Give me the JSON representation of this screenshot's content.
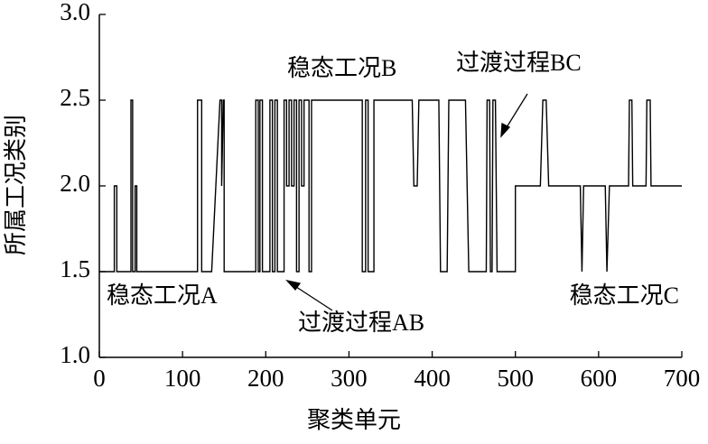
{
  "chart_data": {
    "type": "line",
    "xlabel": "聚类单元",
    "ylabel": "所属工况类别",
    "color": "#000000",
    "xlim": [
      0,
      700
    ],
    "ylim": [
      1,
      3
    ],
    "xticks": [
      0,
      100,
      200,
      300,
      400,
      500,
      600,
      700
    ],
    "yticks": [
      {
        "value": 1,
        "label": "1.0"
      },
      1.5,
      {
        "value": 2,
        "label": "2.0"
      },
      2.5,
      {
        "value": 3,
        "label": "3.0"
      }
    ],
    "annotations": [
      "稳态工况A",
      "过渡过程AB",
      "稳态工况B",
      "过渡过程BC",
      "稳态工况C"
    ],
    "x": [
      0,
      18,
      18,
      21,
      21,
      38,
      38,
      40,
      40,
      43,
      43,
      45,
      45,
      118,
      118,
      123,
      123,
      135,
      145,
      147,
      147,
      149,
      150,
      150,
      188,
      188,
      191,
      191,
      193,
      193,
      196,
      196,
      205,
      205,
      208,
      208,
      211,
      211,
      214,
      214,
      222,
      222,
      225,
      225,
      228,
      228,
      231,
      231,
      234,
      234,
      237,
      237,
      240,
      240,
      243,
      243,
      246,
      246,
      252,
      252,
      255,
      255,
      316,
      316,
      320,
      320,
      323,
      323,
      330,
      330,
      376,
      378,
      382,
      384,
      408,
      410,
      418,
      420,
      440,
      444,
      465,
      466,
      469,
      470,
      472,
      473,
      476,
      478,
      500,
      500,
      530,
      533,
      537,
      540,
      578,
      580,
      582,
      588,
      590,
      608,
      610,
      613,
      636,
      637,
      640,
      641,
      657,
      658,
      662,
      663,
      700
    ],
    "values": [
      1.5,
      1.5,
      2,
      2,
      1.5,
      1.5,
      2.5,
      2.5,
      1.5,
      1.5,
      2,
      2,
      1.5,
      1.5,
      2.5,
      2.5,
      1.5,
      1.5,
      2.5,
      2.5,
      2,
      2.5,
      2.5,
      1.5,
      1.5,
      2.5,
      2.5,
      1.5,
      1.5,
      2.5,
      2.5,
      1.5,
      1.5,
      2.5,
      2.5,
      1.5,
      1.5,
      2.5,
      2.5,
      1.5,
      1.5,
      2.5,
      2.5,
      2,
      2,
      2.5,
      2.5,
      2,
      2,
      2.5,
      2.5,
      1.5,
      1.5,
      2.5,
      2.5,
      2,
      2,
      2.5,
      2.5,
      1.5,
      1.5,
      2.5,
      2.5,
      1.5,
      1.5,
      2.5,
      2.5,
      1.5,
      1.5,
      2.5,
      2.5,
      2,
      2,
      2.5,
      2.5,
      1.5,
      1.5,
      2.5,
      2.5,
      1.5,
      1.5,
      2.5,
      2.5,
      1.5,
      1.5,
      2.5,
      2.5,
      1.5,
      1.5,
      2,
      2,
      2.5,
      2.5,
      2,
      2,
      1.5,
      2,
      2,
      2,
      2,
      1.5,
      2,
      2,
      2.5,
      2.5,
      2,
      2,
      2.5,
      2.5,
      2,
      2
    ]
  }
}
